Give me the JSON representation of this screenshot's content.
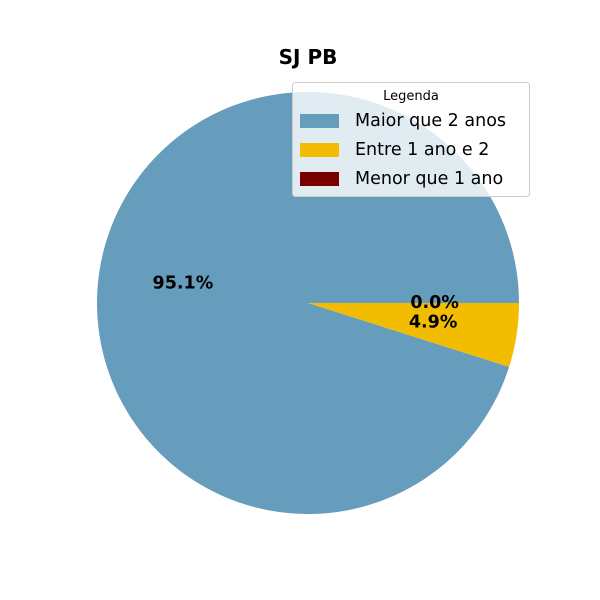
{
  "chart_data": {
    "type": "pie",
    "title": "SJ PB",
    "legend": {
      "title": "Legenda",
      "placement": "top-right"
    },
    "slices": [
      {
        "label": "Maior que 2 anos",
        "value": 95.1,
        "pct_label": "95.1%",
        "color": "#669cbc"
      },
      {
        "label": "Entre 1 ano e 2",
        "value": 4.9,
        "pct_label": "4.9%",
        "color": "#f2bd00"
      },
      {
        "label": "Menor que 1 ano",
        "value": 0.0,
        "pct_label": "0.0%",
        "color": "#7a0000"
      }
    ]
  }
}
